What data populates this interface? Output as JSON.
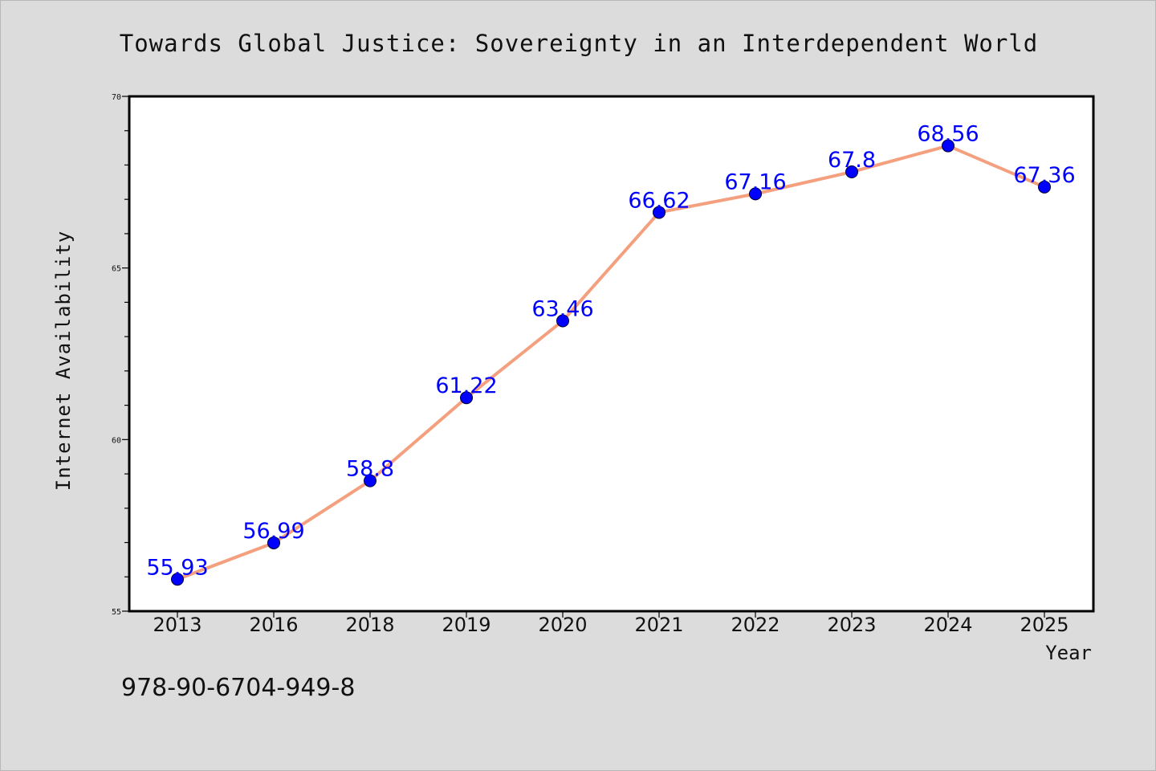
{
  "colors": {
    "page_background": "#dcdcdc",
    "plot_background": "#ffffff",
    "line": "#f4a07e",
    "marker": "#0000ff",
    "data_label": "#0000ff",
    "text": "#111111"
  },
  "isbn": "978-90-6704-949-8",
  "chart_data": {
    "type": "line",
    "title": "Towards Global Justice: Sovereignty in an Interdependent World",
    "xlabel": "Year",
    "ylabel": "Internet Availability",
    "categories": [
      "2013",
      "2016",
      "2018",
      "2019",
      "2020",
      "2021",
      "2022",
      "2023",
      "2024",
      "2025"
    ],
    "series": [
      {
        "values": [
          55.93,
          56.99,
          58.8,
          61.22,
          63.46,
          66.62,
          67.16,
          67.8,
          68.56,
          67.36
        ],
        "labels": [
          "55.93",
          "56.99",
          "58.8",
          "61.22",
          "63.46",
          "66.62",
          "67.16",
          "67.8",
          "68.56",
          "67.36"
        ]
      }
    ],
    "ylim": [
      55,
      70
    ],
    "yticks": [
      "55",
      "60",
      "65",
      "70"
    ],
    "grid": false,
    "legend": "none",
    "marker": "circle"
  }
}
